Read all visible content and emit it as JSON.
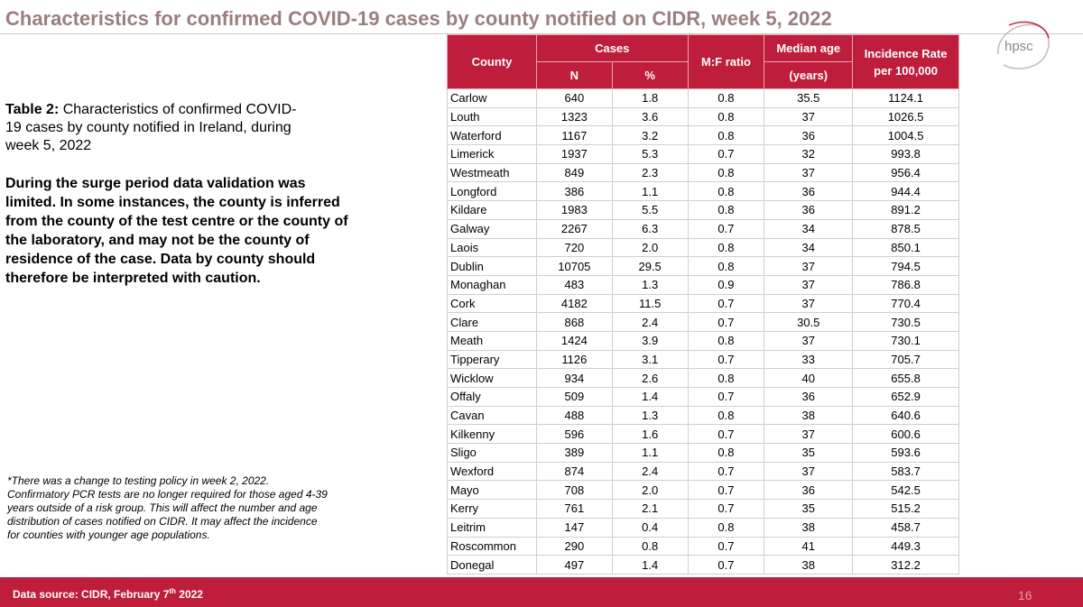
{
  "title": "Characteristics for confirmed COVID-19 cases by county notified on CIDR, week 5, 2022",
  "logo_text": "hpsc",
  "caption": {
    "bold": "Table 2:",
    "text": " Characteristics of confirmed COVID-19 cases by county notified in Ireland, during week 5, 2022"
  },
  "note": "During the surge period data validation was limited. In some instances, the county is inferred from the county of the test centre or the county of the laboratory, and may not be the county of residence of the case. Data by county should therefore be interpreted with caution.",
  "footnote": "*There was a change to testing policy in week 2, 2022. Confirmatory PCR tests are no longer required for those aged 4-39 years outside of a risk group. This will affect the number and age distribution of cases notified on CIDR. It may affect the incidence for counties with younger age populations.",
  "table": {
    "headers": {
      "county": "County",
      "cases": "Cases",
      "n": "N",
      "pct": "%",
      "mf": "M:F ratio",
      "median_line1": "Median age",
      "median_line2": "(years)",
      "incidence_line1": "Incidence Rate",
      "incidence_line2": "per 100,000"
    },
    "rows": [
      [
        "Carlow",
        "640",
        "1.8",
        "0.8",
        "35.5",
        "1124.1"
      ],
      [
        "Louth",
        "1323",
        "3.6",
        "0.8",
        "37",
        "1026.5"
      ],
      [
        "Waterford",
        "1167",
        "3.2",
        "0.8",
        "36",
        "1004.5"
      ],
      [
        "Limerick",
        "1937",
        "5.3",
        "0.7",
        "32",
        "993.8"
      ],
      [
        "Westmeath",
        "849",
        "2.3",
        "0.8",
        "37",
        "956.4"
      ],
      [
        "Longford",
        "386",
        "1.1",
        "0.8",
        "36",
        "944.4"
      ],
      [
        "Kildare",
        "1983",
        "5.5",
        "0.8",
        "36",
        "891.2"
      ],
      [
        "Galway",
        "2267",
        "6.3",
        "0.7",
        "34",
        "878.5"
      ],
      [
        "Laois",
        "720",
        "2.0",
        "0.8",
        "34",
        "850.1"
      ],
      [
        "Dublin",
        "10705",
        "29.5",
        "0.8",
        "37",
        "794.5"
      ],
      [
        "Monaghan",
        "483",
        "1.3",
        "0.9",
        "37",
        "786.8"
      ],
      [
        "Cork",
        "4182",
        "11.5",
        "0.7",
        "37",
        "770.4"
      ],
      [
        "Clare",
        "868",
        "2.4",
        "0.7",
        "30.5",
        "730.5"
      ],
      [
        "Meath",
        "1424",
        "3.9",
        "0.8",
        "37",
        "730.1"
      ],
      [
        "Tipperary",
        "1126",
        "3.1",
        "0.7",
        "33",
        "705.7"
      ],
      [
        "Wicklow",
        "934",
        "2.6",
        "0.8",
        "40",
        "655.8"
      ],
      [
        "Offaly",
        "509",
        "1.4",
        "0.7",
        "36",
        "652.9"
      ],
      [
        "Cavan",
        "488",
        "1.3",
        "0.8",
        "38",
        "640.6"
      ],
      [
        "Kilkenny",
        "596",
        "1.6",
        "0.7",
        "37",
        "600.6"
      ],
      [
        "Sligo",
        "389",
        "1.1",
        "0.8",
        "35",
        "593.6"
      ],
      [
        "Wexford",
        "874",
        "2.4",
        "0.7",
        "37",
        "583.7"
      ],
      [
        "Mayo",
        "708",
        "2.0",
        "0.7",
        "36",
        "542.5"
      ],
      [
        "Kerry",
        "761",
        "2.1",
        "0.7",
        "35",
        "515.2"
      ],
      [
        "Leitrim",
        "147",
        "0.4",
        "0.8",
        "38",
        "458.7"
      ],
      [
        "Roscommon",
        "290",
        "0.8",
        "0.7",
        "41",
        "449.3"
      ],
      [
        "Donegal",
        "497",
        "1.4",
        "0.7",
        "38",
        "312.2"
      ]
    ]
  },
  "footer": {
    "source_prefix": "Data source: CIDR, February 7",
    "source_sup": "th",
    "source_suffix": " 2022",
    "page_number": "16"
  },
  "colors": {
    "brand_red": "#be1e3c",
    "title": "#9b7f80"
  }
}
